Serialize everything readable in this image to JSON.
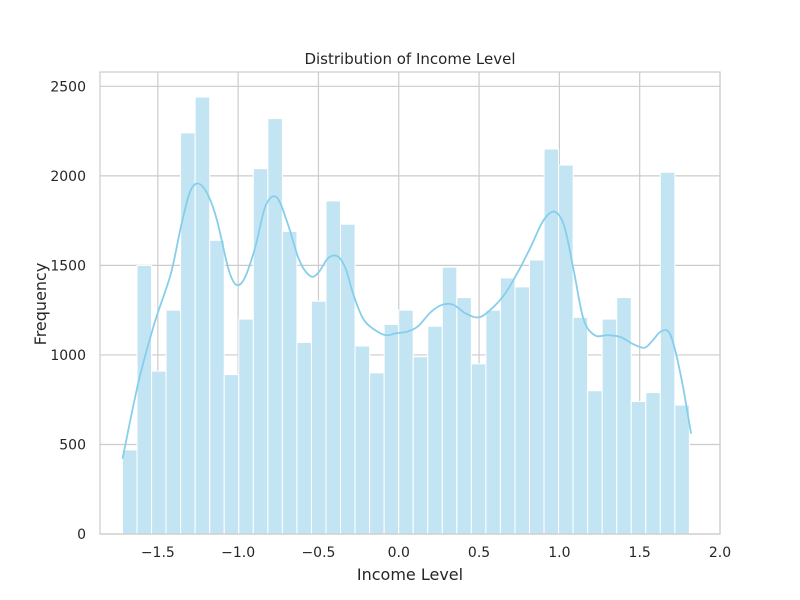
{
  "chart_data": {
    "type": "bar",
    "title": "Distribution of Income Level",
    "xlabel": "Income Level",
    "ylabel": "Frequency",
    "xlim": [
      -1.86,
      2.0
    ],
    "ylim": [
      0,
      2580
    ],
    "x_ticks": [
      -1.5,
      -1.0,
      -0.5,
      0.0,
      0.5,
      1.0,
      1.5,
      2.0
    ],
    "x_tick_labels": [
      "−1.5",
      "−1.0",
      "−0.5",
      "0.0",
      "0.5",
      "1.0",
      "1.5",
      "2.0"
    ],
    "y_ticks": [
      0,
      500,
      1000,
      1500,
      2000,
      2500
    ],
    "y_tick_labels": [
      "0",
      "500",
      "1000",
      "1500",
      "2000",
      "2500"
    ],
    "grid": true,
    "bins": {
      "start": -1.72,
      "width": 0.0905,
      "counts": [
        470,
        1500,
        910,
        1250,
        2240,
        2440,
        1640,
        890,
        1200,
        2040,
        2320,
        1690,
        1070,
        1300,
        1860,
        1730,
        1050,
        900,
        1170,
        1250,
        990,
        1160,
        1490,
        1320,
        950,
        1250,
        1430,
        1380,
        1530,
        2150,
        2060,
        1210,
        800,
        1200,
        1320,
        740,
        790,
        2020,
        720
      ]
    },
    "kde": {
      "x": [
        -1.72,
        -1.62,
        -1.52,
        -1.42,
        -1.35,
        -1.29,
        -1.22,
        -1.14,
        -1.05,
        -0.98,
        -0.9,
        -0.83,
        -0.76,
        -0.69,
        -0.62,
        -0.55,
        -0.5,
        -0.44,
        -0.38,
        -0.33,
        -0.28,
        -0.22,
        -0.15,
        -0.08,
        -0.02,
        0.05,
        0.12,
        0.2,
        0.27,
        0.34,
        0.42,
        0.5,
        0.58,
        0.66,
        0.74,
        0.82,
        0.9,
        0.97,
        1.03,
        1.09,
        1.15,
        1.22,
        1.3,
        1.38,
        1.46,
        1.53,
        1.58,
        1.63,
        1.68,
        1.72,
        1.77,
        1.82
      ],
      "y": [
        420,
        850,
        1180,
        1450,
        1740,
        1930,
        1940,
        1780,
        1450,
        1400,
        1580,
        1830,
        1880,
        1730,
        1530,
        1440,
        1460,
        1540,
        1550,
        1480,
        1330,
        1200,
        1140,
        1110,
        1120,
        1130,
        1160,
        1240,
        1280,
        1280,
        1230,
        1210,
        1260,
        1340,
        1460,
        1600,
        1750,
        1800,
        1720,
        1470,
        1200,
        1110,
        1110,
        1100,
        1060,
        1040,
        1080,
        1130,
        1130,
        1030,
        820,
        560
      ]
    },
    "bar_color": "#c3e5f3",
    "line_color": "#87ceeb",
    "grid_color": "#cccccc",
    "spine_color": "#cccccc"
  }
}
